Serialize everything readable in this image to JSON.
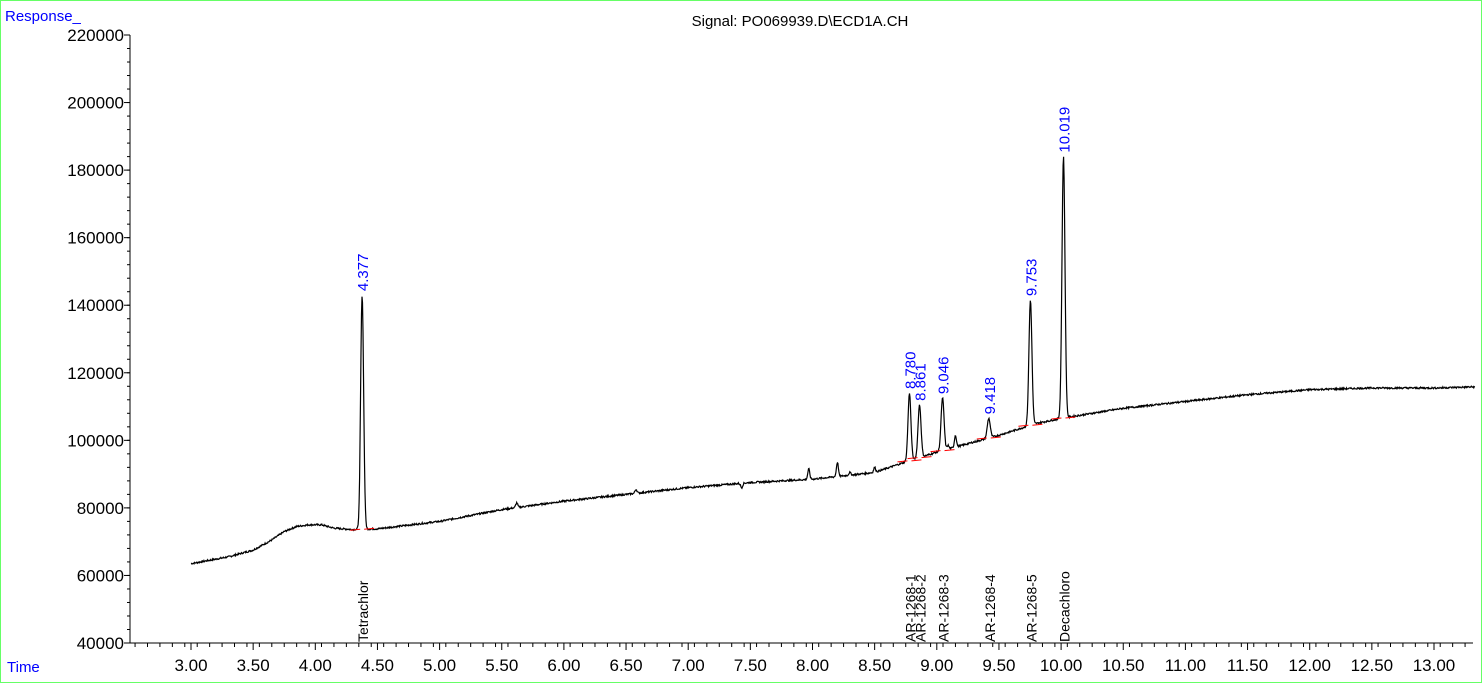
{
  "chart_data": {
    "type": "line",
    "title": "Signal: PO069939.D\\ECD1A.CH",
    "ylabel": "Response_",
    "xlabel": "Time",
    "xlim": [
      2.55,
      13.33
    ],
    "ylim": [
      40000,
      220000
    ],
    "x_ticks": [
      "3.00",
      "3.50",
      "4.00",
      "4.50",
      "5.00",
      "5.50",
      "6.00",
      "6.50",
      "7.00",
      "7.50",
      "8.00",
      "8.50",
      "9.00",
      "9.50",
      "10.00",
      "10.50",
      "11.00",
      "11.50",
      "12.00",
      "12.50",
      "13.00"
    ],
    "y_ticks": [
      "40000",
      "60000",
      "80000",
      "100000",
      "120000",
      "140000",
      "160000",
      "180000",
      "200000",
      "220000"
    ],
    "baseline": [
      [
        3.0,
        63500
      ],
      [
        3.3,
        65500
      ],
      [
        3.5,
        67500
      ],
      [
        3.65,
        70500
      ],
      [
        3.75,
        73000
      ],
      [
        3.85,
        74500
      ],
      [
        3.95,
        75000
      ],
      [
        4.05,
        75000
      ],
      [
        4.15,
        74000
      ],
      [
        4.3,
        73600
      ],
      [
        4.5,
        73800
      ],
      [
        5.0,
        76000
      ],
      [
        5.5,
        79500
      ],
      [
        6.0,
        82000
      ],
      [
        6.5,
        84000
      ],
      [
        7.0,
        86000
      ],
      [
        7.5,
        87500
      ],
      [
        8.0,
        88500
      ],
      [
        8.5,
        90500
      ],
      [
        8.7,
        93000
      ],
      [
        9.0,
        96500
      ],
      [
        9.5,
        101500
      ],
      [
        9.8,
        105000
      ],
      [
        10.0,
        106500
      ],
      [
        10.5,
        109500
      ],
      [
        11.0,
        111500
      ],
      [
        11.5,
        113500
      ],
      [
        12.0,
        115000
      ],
      [
        12.5,
        115500
      ],
      [
        13.0,
        115500
      ],
      [
        13.3,
        115800
      ]
    ],
    "peaks": [
      {
        "rt": 4.377,
        "label": "4.377",
        "apex": 143000,
        "width": 0.012,
        "compound": "Tetrachlor"
      },
      {
        "rt": 8.78,
        "label": "8.780",
        "apex": 114000,
        "width": 0.012,
        "compound": "AR-1268-1"
      },
      {
        "rt": 8.861,
        "label": "8.861",
        "apex": 110500,
        "width": 0.012,
        "compound": "AR-1268-2"
      },
      {
        "rt": 9.046,
        "label": "9.046",
        "apex": 112500,
        "width": 0.012,
        "compound": "AR-1268-3"
      },
      {
        "rt": 9.418,
        "label": "9.418",
        "apex": 106500,
        "width": 0.012,
        "compound": "AR-1268-4"
      },
      {
        "rt": 9.753,
        "label": "9.753",
        "apex": 141500,
        "width": 0.012,
        "compound": "AR-1268-5"
      },
      {
        "rt": 10.019,
        "label": "10.019",
        "apex": 184000,
        "width": 0.012,
        "compound": "Decachloro"
      }
    ],
    "minor_peaks": [
      [
        5.62,
        81500
      ],
      [
        6.58,
        85500
      ],
      [
        7.43,
        86000
      ],
      [
        7.97,
        91500
      ],
      [
        8.2,
        93500
      ],
      [
        8.3,
        90500
      ],
      [
        8.5,
        92000
      ],
      [
        9.15,
        101500
      ],
      [
        9.09,
        98500
      ]
    ],
    "grid": false,
    "colors": {
      "trace": "#000000",
      "peak_label": "#0000ff",
      "baseline_mark": "#ff0000",
      "axis": "#000000",
      "frame": "#66ff66"
    }
  }
}
